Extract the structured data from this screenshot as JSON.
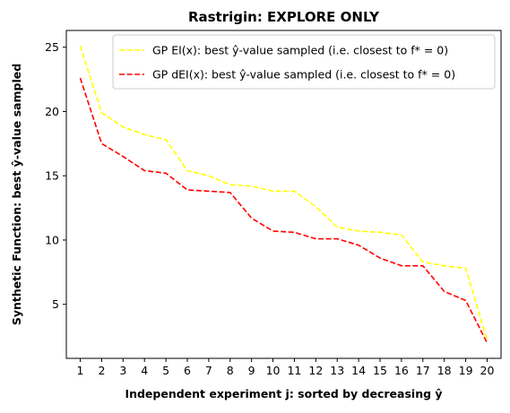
{
  "chart_data": {
    "type": "line",
    "title": "Rastrigin: EXPLORE ONLY",
    "xlabel": "Independent experiment j: sorted by decreasing ŷ",
    "ylabel": "Synthetic Function: best ŷ-value sampled",
    "x": [
      1,
      2,
      3,
      4,
      5,
      6,
      7,
      8,
      9,
      10,
      11,
      12,
      13,
      14,
      15,
      16,
      17,
      18,
      19,
      20
    ],
    "xlim": [
      0.35,
      20.65
    ],
    "ylim": [
      0.8,
      26.3
    ],
    "yticks": [
      5,
      10,
      15,
      20,
      25
    ],
    "legend_position": "top-right",
    "grid": false,
    "series": [
      {
        "name": "GP EI(x):   best ŷ-value sampled (i.e. closest to f* = 0)",
        "color": "#ffff00",
        "style": "dashed",
        "values": [
          25.1,
          19.9,
          18.8,
          18.2,
          17.8,
          15.4,
          15.0,
          14.3,
          14.2,
          13.8,
          13.8,
          12.6,
          11.0,
          10.7,
          10.6,
          10.4,
          8.3,
          8.0,
          7.8,
          2.2
        ]
      },
      {
        "name": "GP dEI(x): best ŷ-value sampled (i.e. closest to f* = 0)",
        "color": "#ff0000",
        "style": "dashed",
        "values": [
          22.6,
          17.5,
          16.5,
          15.4,
          15.2,
          13.9,
          13.8,
          13.7,
          11.7,
          10.7,
          10.6,
          10.1,
          10.1,
          9.6,
          8.6,
          8.0,
          8.0,
          6.0,
          5.3,
          2.0
        ]
      }
    ]
  }
}
